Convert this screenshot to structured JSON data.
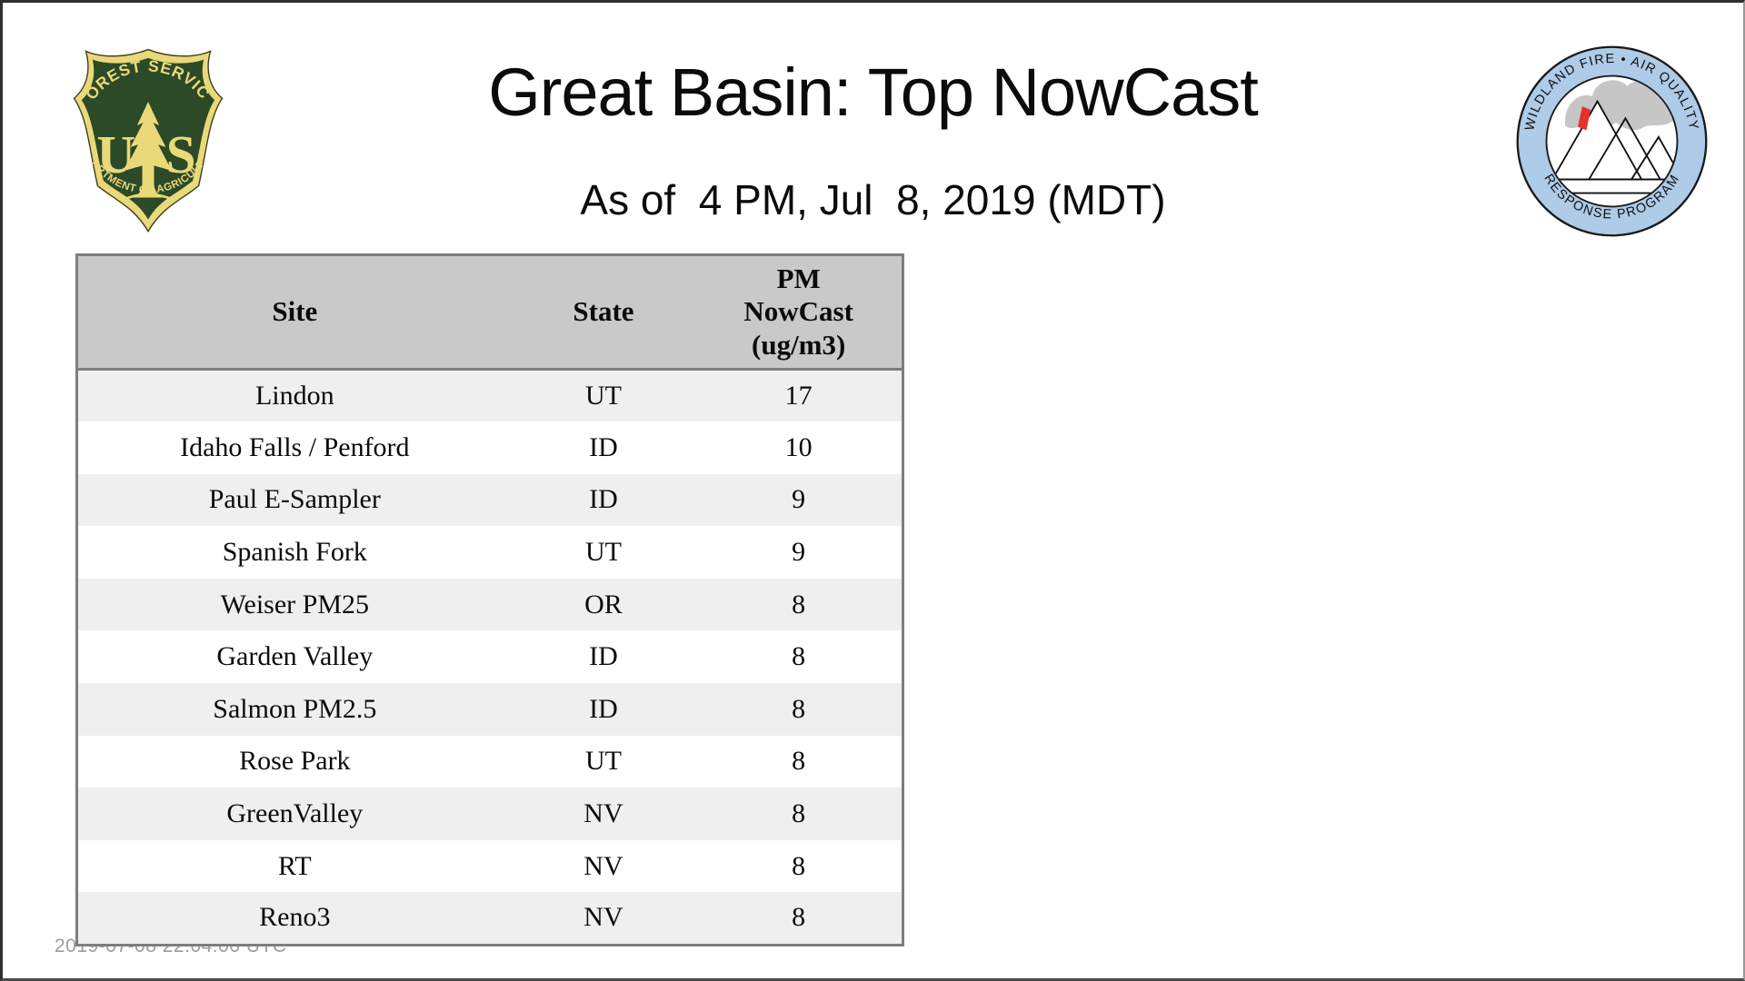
{
  "page": {
    "title": "Great Basin: Top NowCast",
    "subtitle": "As of  4 PM, Jul  8, 2019 (MDT)",
    "footer_timestamp": "2019-07-08 22:04:00 UTC"
  },
  "logos": {
    "forest_service": {
      "top_text": "FOREST SERVICE",
      "letter_left": "U",
      "letter_right": "S",
      "bottom_text": "DEPARTMENT OF AGRICULTURE",
      "shield_green": "#2c4a27",
      "gold": "#ead979"
    },
    "wfaqrp": {
      "top_text": "WILDLAND FIRE • AIR QUALITY",
      "bottom_text": "RESPONSE PROGRAM",
      "ring_blue": "#aecbe8",
      "smoke_gray": "#c6c6c6",
      "flame_red": "#e63329"
    }
  },
  "table": {
    "headers": [
      "Site",
      "State",
      "PM\nNowCast\n(ug/m3)"
    ],
    "rows": [
      {
        "site": "Lindon",
        "state": "UT",
        "nowcast": "17"
      },
      {
        "site": "Idaho Falls / Penford",
        "state": "ID",
        "nowcast": "10"
      },
      {
        "site": "Paul E-Sampler",
        "state": "ID",
        "nowcast": "9"
      },
      {
        "site": "Spanish Fork",
        "state": "UT",
        "nowcast": "9"
      },
      {
        "site": "Weiser PM25",
        "state": "OR",
        "nowcast": "8"
      },
      {
        "site": "Garden Valley",
        "state": "ID",
        "nowcast": "8"
      },
      {
        "site": "Salmon PM2.5",
        "state": "ID",
        "nowcast": "8"
      },
      {
        "site": "Rose Park",
        "state": "UT",
        "nowcast": "8"
      },
      {
        "site": "GreenValley",
        "state": "NV",
        "nowcast": "8"
      },
      {
        "site": "RT",
        "state": "NV",
        "nowcast": "8"
      },
      {
        "site": "Reno3",
        "state": "NV",
        "nowcast": "8"
      }
    ],
    "colors": {
      "header_bg": "#c9c9c9",
      "row_odd_bg": "#efefef",
      "row_even_bg": "#ffffff",
      "border": "#7e7e7e"
    }
  }
}
